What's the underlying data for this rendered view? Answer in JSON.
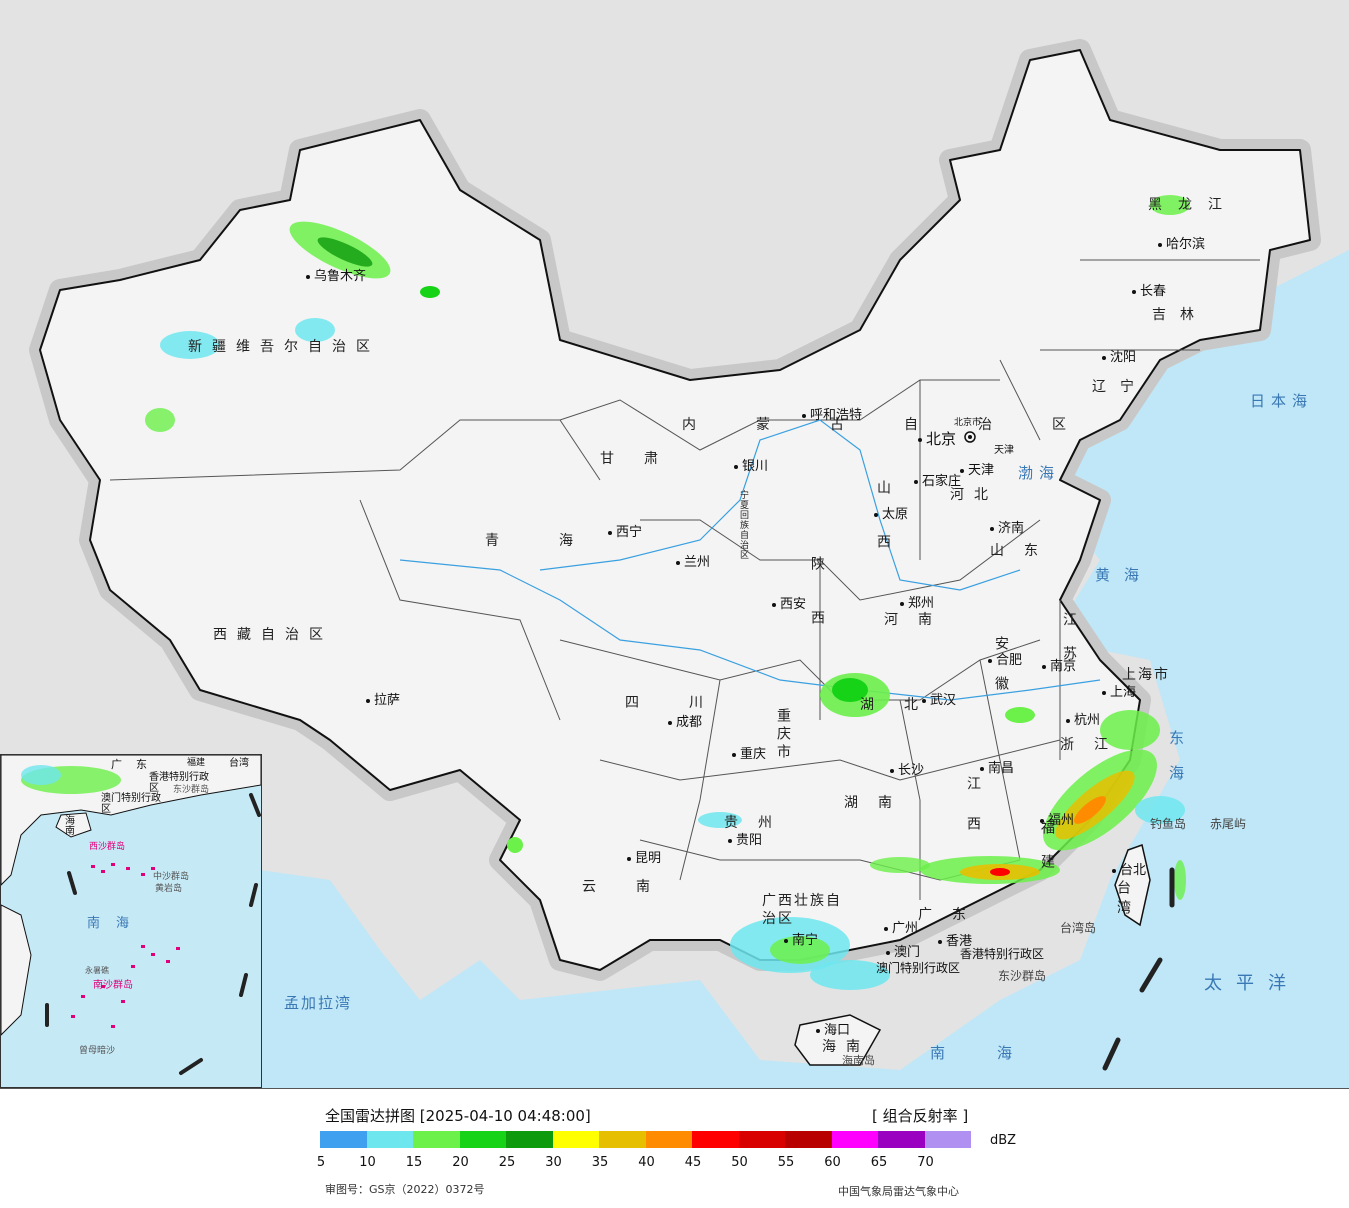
{
  "map": {
    "colors": {
      "background": "#e3e3e3",
      "sea": "#bfe7f7",
      "land": "#f4f4f4",
      "border": "#111111",
      "river": "#3aa0e0"
    },
    "provinces": [
      "新疆维吾尔自治区",
      "西藏自治区",
      "青海",
      "甘肃",
      "内蒙古自治区",
      "黑龙江",
      "吉林",
      "辽宁",
      "河北",
      "山西",
      "陕西",
      "宁夏回族自治区",
      "四川",
      "重庆市",
      "云南",
      "贵州",
      "广西壮族自治区",
      "广东",
      "海南",
      "湖南",
      "湖北",
      "河南",
      "山东",
      "江苏",
      "安徽",
      "浙江",
      "江西",
      "福建",
      "台湾",
      "上海市",
      "北京市",
      "天津",
      "香港特别行政区",
      "澳门特别行政区"
    ],
    "cities": [
      "乌鲁木齐",
      "哈尔滨",
      "长春",
      "沈阳",
      "呼和浩特",
      "北京",
      "天津",
      "石家庄",
      "太原",
      "银川",
      "济南",
      "西宁",
      "兰州",
      "西安",
      "郑州",
      "合肥",
      "南京",
      "上海",
      "杭州",
      "拉萨",
      "成都",
      "重庆",
      "武汉",
      "长沙",
      "南昌",
      "福州",
      "台北",
      "贵阳",
      "昆明",
      "南宁",
      "广州",
      "香港",
      "澳门",
      "海口"
    ],
    "seas": [
      "日本海",
      "渤海",
      "黄海",
      "东海",
      "太平洋",
      "南海",
      "孟加拉湾"
    ],
    "islands": [
      "钓鱼岛",
      "赤尾屿",
      "台湾岛",
      "东沙群岛",
      "海南岛"
    ]
  },
  "inset": {
    "labels": [
      "广东",
      "福建",
      "台湾",
      "香港特别行政区",
      "澳门特别行政区",
      "东沙群岛",
      "海南",
      "西沙群岛",
      "中沙群岛",
      "黄岩岛",
      "南海",
      "南沙群岛",
      "曾母暗沙",
      "永暑礁"
    ]
  },
  "legend": {
    "title": "全国雷达拼图 [2025-04-10 04:48:00]",
    "product": "[ 组合反射率 ]",
    "unit": "dBZ",
    "ticks": [
      "5",
      "10",
      "15",
      "20",
      "25",
      "30",
      "35",
      "40",
      "45",
      "50",
      "55",
      "60",
      "65",
      "70"
    ],
    "colors": [
      "#3fa0f0",
      "#6ee6ee",
      "#6cf04a",
      "#17d317",
      "#0d9a0d",
      "#ffff00",
      "#e6c000",
      "#ff8c00",
      "#ff0000",
      "#d90000",
      "#b80000",
      "#ff00ff",
      "#9a00c0",
      "#b090f0"
    ],
    "approval": "审图号：GS京（2022）0372号",
    "credit": "中国气象局雷达气象中心"
  },
  "chart_data": {
    "type": "heatmap",
    "title": "全国雷达拼图 [2025-04-10 04:48:00]",
    "product": "组合反射率",
    "unit": "dBZ",
    "scale_min": 5,
    "scale_max": 75,
    "scale_step": 5,
    "bins": [
      {
        "from": 5,
        "to": 10,
        "color": "#3fa0f0"
      },
      {
        "from": 10,
        "to": 15,
        "color": "#6ee6ee"
      },
      {
        "from": 15,
        "to": 20,
        "color": "#6cf04a"
      },
      {
        "from": 20,
        "to": 25,
        "color": "#17d317"
      },
      {
        "from": 25,
        "to": 30,
        "color": "#0d9a0d"
      },
      {
        "from": 30,
        "to": 35,
        "color": "#ffff00"
      },
      {
        "from": 35,
        "to": 40,
        "color": "#e6c000"
      },
      {
        "from": 40,
        "to": 45,
        "color": "#ff8c00"
      },
      {
        "from": 45,
        "to": 50,
        "color": "#ff0000"
      },
      {
        "from": 50,
        "to": 55,
        "color": "#d90000"
      },
      {
        "from": 55,
        "to": 60,
        "color": "#b80000"
      },
      {
        "from": 60,
        "to": 65,
        "color": "#ff00ff"
      },
      {
        "from": 65,
        "to": 70,
        "color": "#9a00c0"
      },
      {
        "from": 70,
        "to": 75,
        "color": "#b090f0"
      }
    ]
  }
}
